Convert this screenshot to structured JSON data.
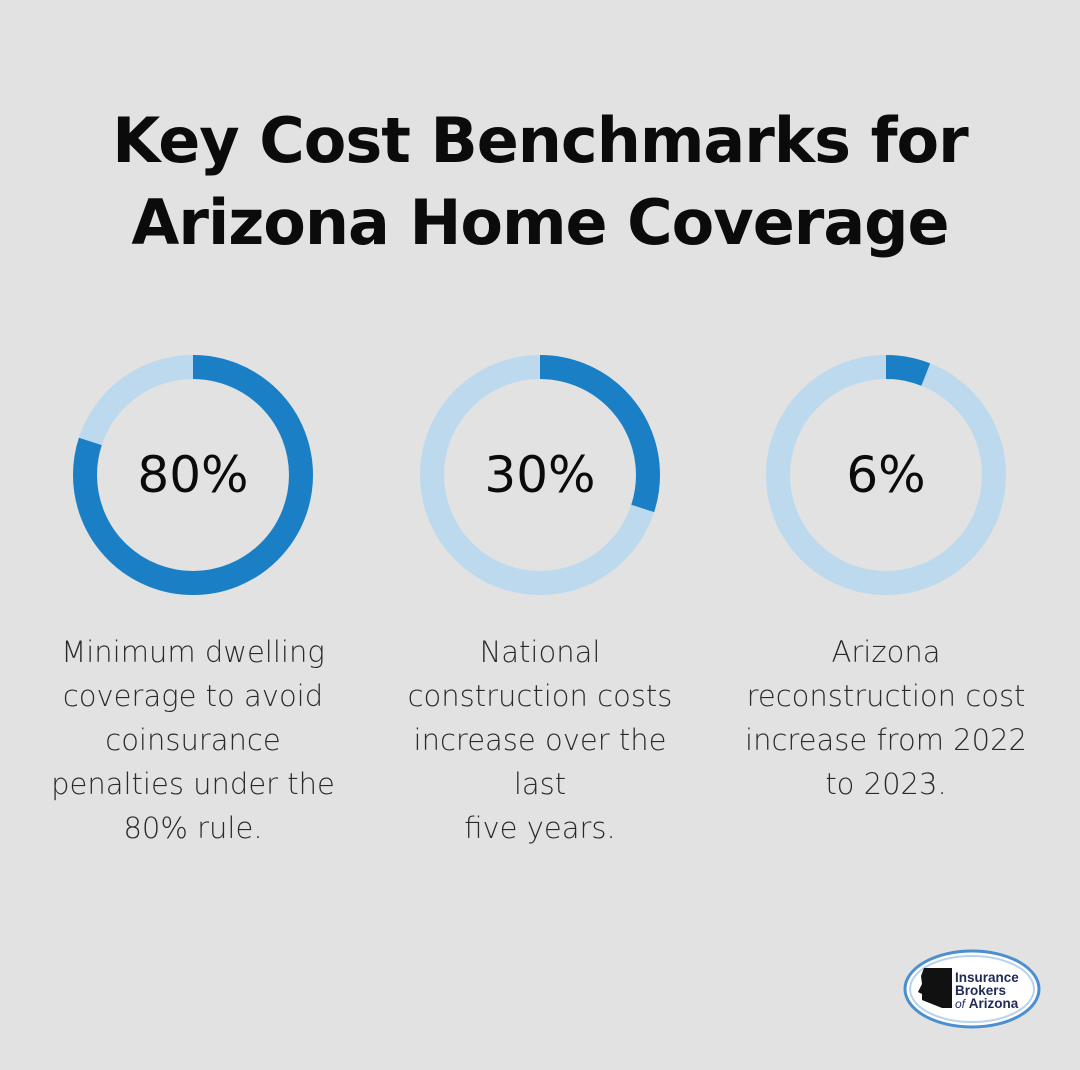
{
  "title_lines": [
    "Key Cost Benchmarks for",
    "Arizona Home Coverage"
  ],
  "colors": {
    "background": "#e1e2e1",
    "ring_fill": "#1b7fc6",
    "ring_track": "#bcd9ee"
  },
  "chart_data": {
    "type": "donut",
    "items": [
      {
        "label": "80%",
        "value": 80,
        "description": [
          "Minimum dwelling",
          "coverage to avoid",
          "coinsurance",
          "penalties under the",
          "80% rule."
        ]
      },
      {
        "label": "30%",
        "value": 30,
        "description": [
          "National",
          "construction costs",
          "increase over the last",
          "five years."
        ]
      },
      {
        "label": "6%",
        "value": 6,
        "description": [
          "Arizona",
          "reconstruction cost",
          "increase from 2022",
          "to 2023."
        ]
      }
    ]
  },
  "logo": {
    "line1": "Insurance",
    "line2": "Brokers",
    "line3_prefix": "of",
    "line3": "Arizona",
    "icon": "arizona-state-outline-icon"
  }
}
